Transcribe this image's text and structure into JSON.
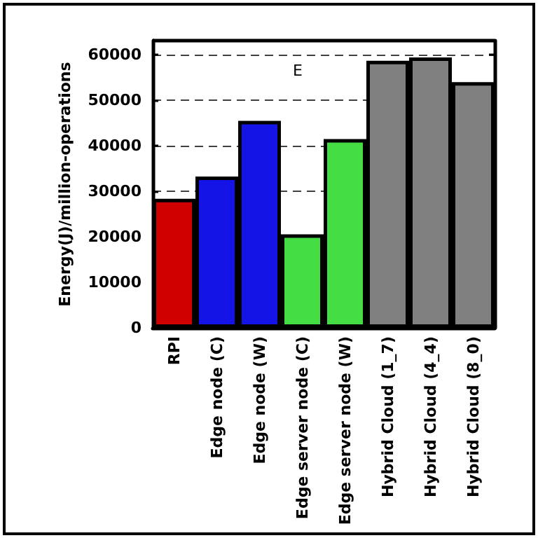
{
  "chart_data": {
    "type": "bar",
    "ylabel": "Energy(J)/million-operations",
    "categories": [
      "RPI",
      "Edge node (C)",
      "Edge node (W)",
      "Edge server node (C)",
      "Edge server node (W)",
      "Hybrid Cloud (1_7)",
      "Hybrid Cloud (4_4)",
      "Hybrid Cloud (8_0)"
    ],
    "values": [
      28300,
      33200,
      45400,
      20500,
      41400,
      58600,
      59300,
      53900
    ],
    "colors": [
      "#d00000",
      "#1414e6",
      "#1414e6",
      "#44dd44",
      "#44dd44",
      "#808080",
      "#808080",
      "#808080"
    ],
    "ylim": [
      0,
      63000
    ],
    "yticks": [
      0,
      10000,
      20000,
      30000,
      40000,
      50000,
      60000
    ],
    "grid": "y",
    "annotations": [
      "E"
    ]
  }
}
